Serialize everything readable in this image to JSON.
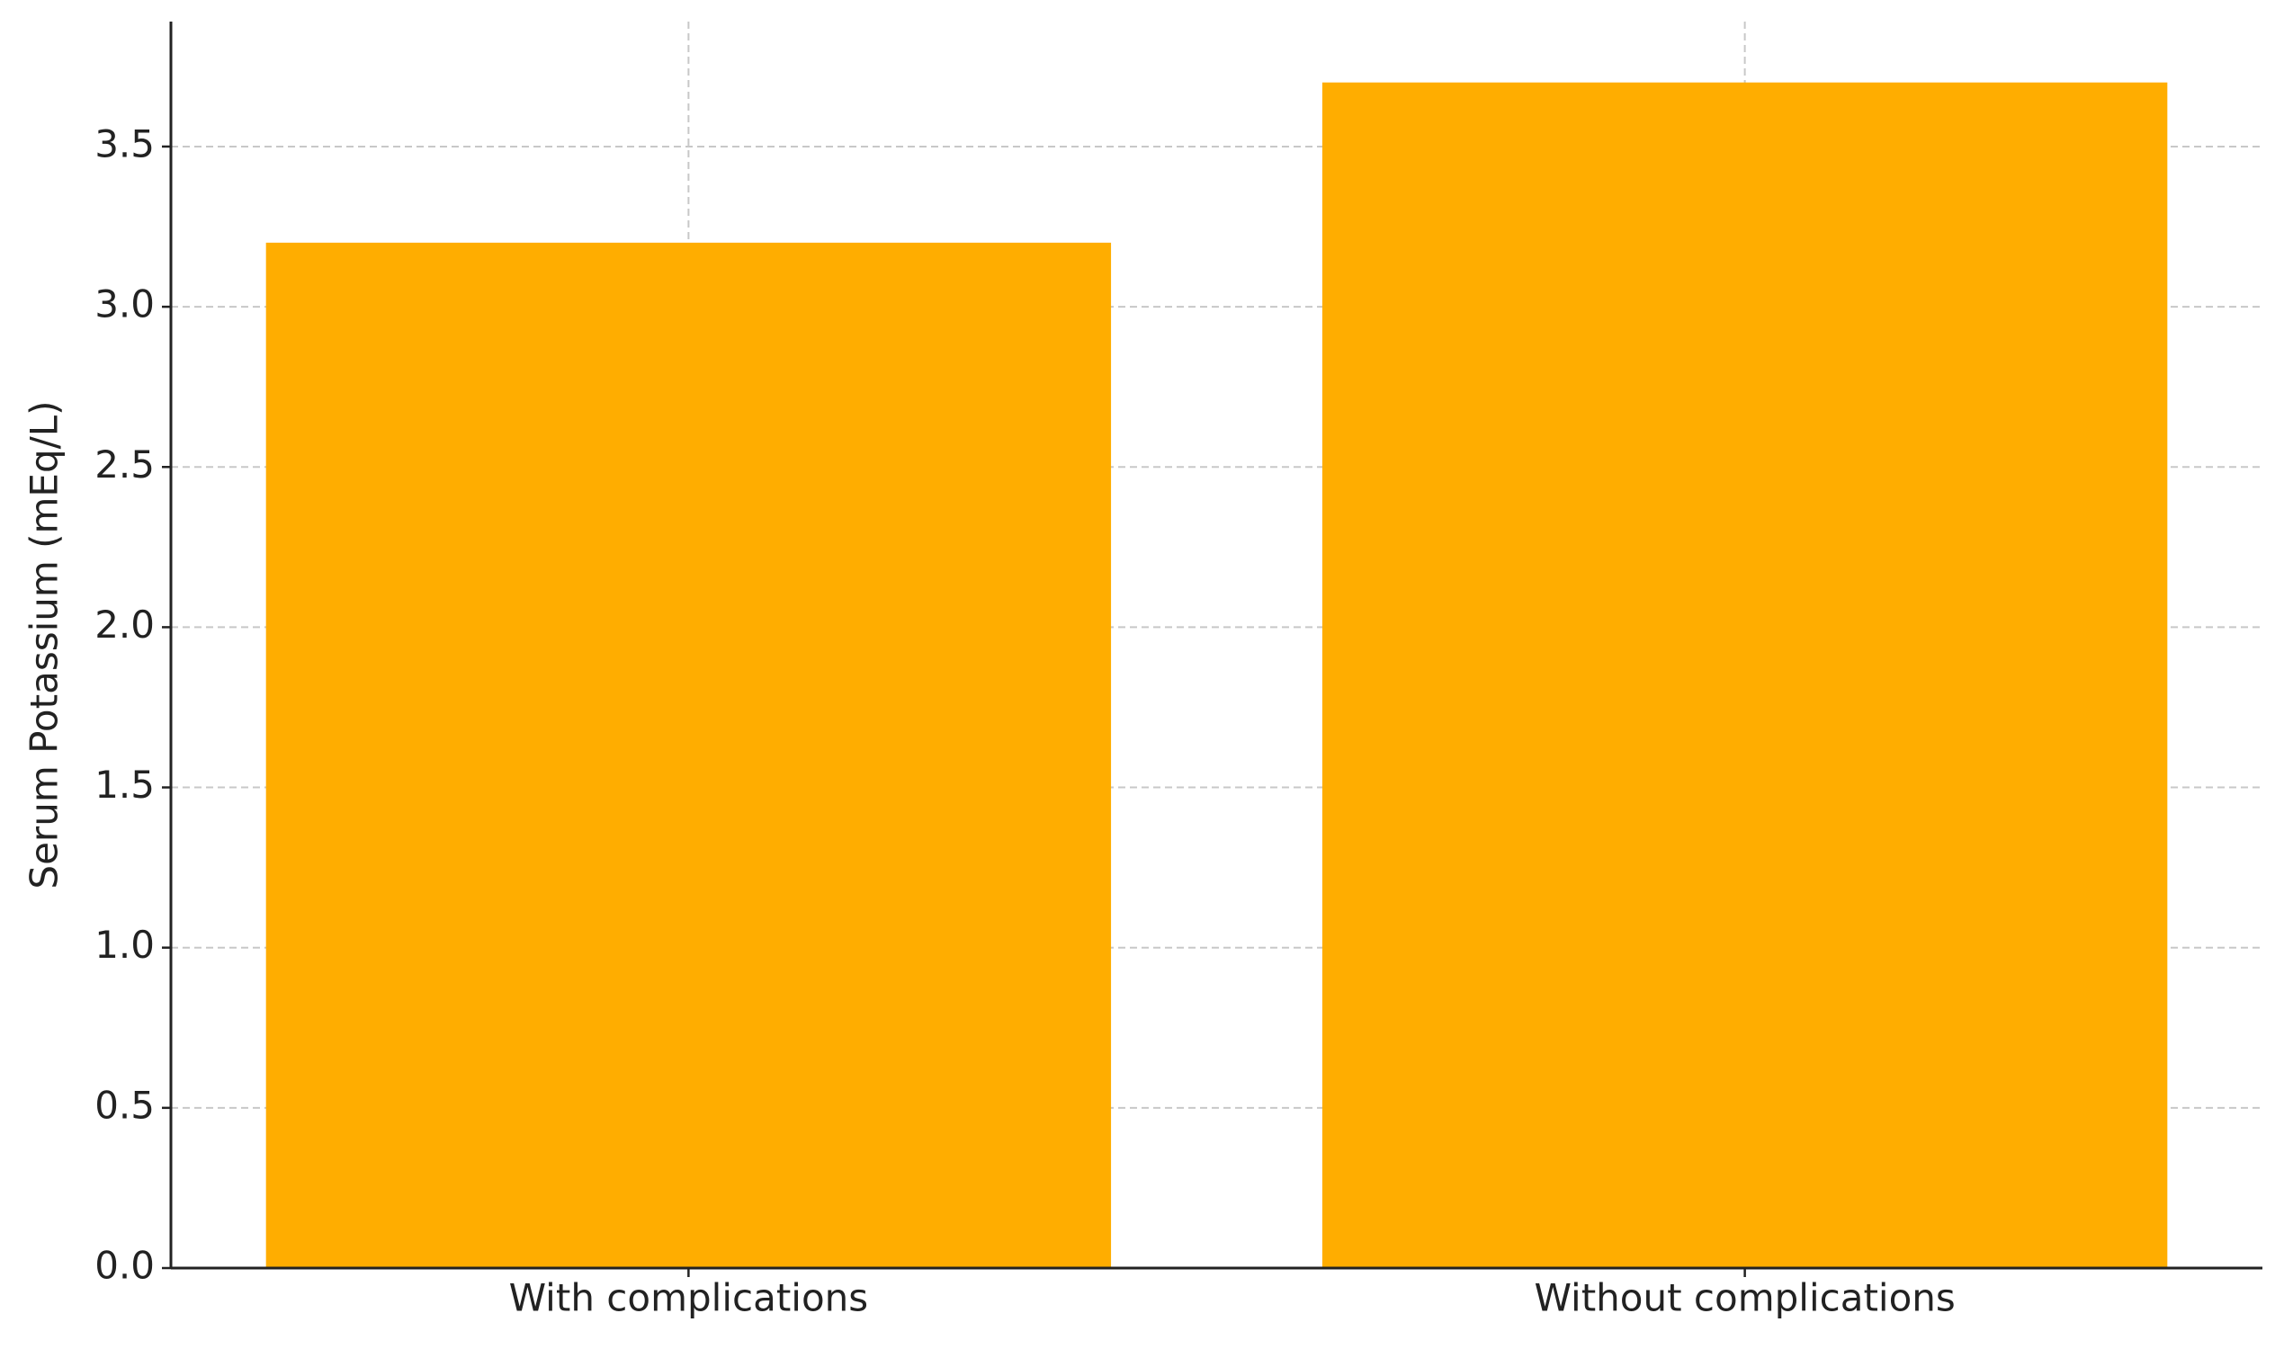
{
  "chart_data": {
    "type": "bar",
    "ylabel": "Serum Potassium (mEq/L)",
    "categories": [
      "With complications",
      "Without complications"
    ],
    "values": [
      3.2,
      3.7
    ],
    "color": "#ffad00",
    "ylim": [
      0,
      3.89
    ],
    "yticks": [
      {
        "value": 0,
        "label": "0.0"
      },
      0.5,
      {
        "value": 1,
        "label": "1.0"
      },
      1.5,
      {
        "value": 2,
        "label": "2.0"
      },
      2.5,
      {
        "value": 3,
        "label": "3.0"
      },
      3.5
    ],
    "grid": true
  }
}
